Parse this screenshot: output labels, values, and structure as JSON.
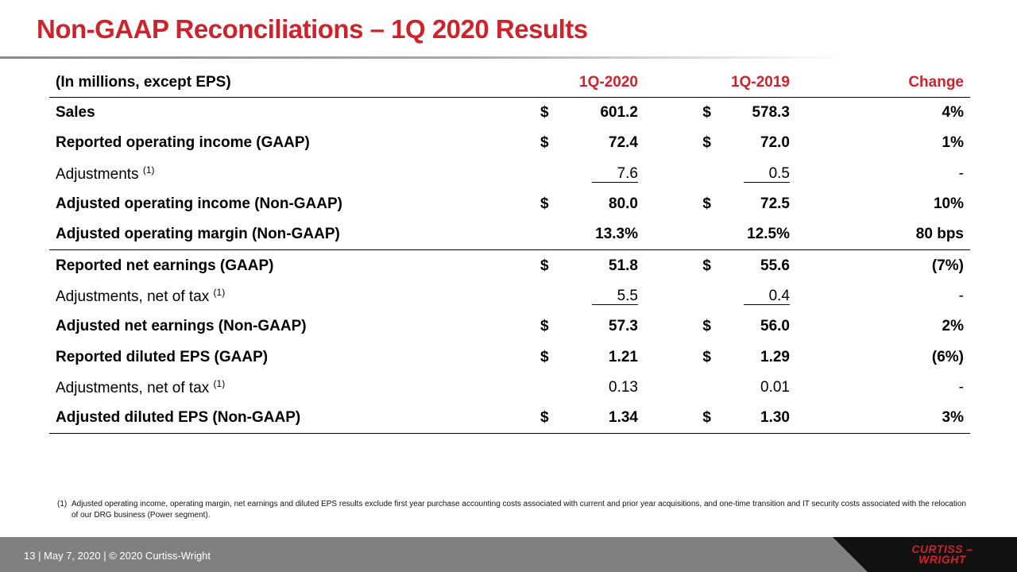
{
  "title": "Non-GAAP Reconciliations – 1Q 2020 Results",
  "table": {
    "header": {
      "label": "(In millions,  except EPS)",
      "col1": "1Q-2020",
      "col2": "1Q-2019",
      "col3": "Change"
    },
    "rows": [
      {
        "label": "Sales",
        "cur1": "$",
        "v1": "601.2",
        "cur2": "$",
        "v2": "578.3",
        "chg": "4%"
      },
      {
        "label": "Reported operating income (GAAP)",
        "cur1": "$",
        "v1": "72.4",
        "cur2": "$",
        "v2": "72.0",
        "chg": "1%"
      },
      {
        "label": "Adjustments",
        "sup": "(1)",
        "v1": "7.6",
        "v2": "0.5",
        "chg": "-"
      },
      {
        "label": "Adjusted operating income (Non-GAAP)",
        "cur1": "$",
        "v1": "80.0",
        "cur2": "$",
        "v2": "72.5",
        "chg": "10%"
      },
      {
        "label": "Adjusted operating margin (Non-GAAP)",
        "v1": "13.3%",
        "v2": "12.5%",
        "chg": "80 bps"
      },
      {
        "label": "Reported net earnings (GAAP)",
        "cur1": "$",
        "v1": "51.8",
        "cur2": "$",
        "v2": "55.6",
        "chg": "(7%)"
      },
      {
        "label": "Adjustments, net of tax",
        "sup": "(1)",
        "v1": "5.5",
        "v2": "0.4",
        "chg": "-"
      },
      {
        "label": "Adjusted net earnings (Non-GAAP)",
        "cur1": "$",
        "v1": "57.3",
        "cur2": "$",
        "v2": "56.0",
        "chg": "2%"
      },
      {
        "label": "Reported diluted EPS (GAAP)",
        "cur1": "$",
        "v1": "1.21",
        "cur2": "$",
        "v2": "1.29",
        "chg": "(6%)"
      },
      {
        "label": "Adjustments, net of tax",
        "sup": "(1)",
        "v1": "0.13",
        "v2": "0.01",
        "chg": "-"
      },
      {
        "label": "Adjusted diluted EPS (Non-GAAP)",
        "cur1": "$",
        "v1": "1.34",
        "cur2": "$",
        "v2": "1.30",
        "chg": "3%"
      }
    ]
  },
  "footnote": {
    "marker": "(1)",
    "text": "Adjusted operating income, operating margin, net earnings and diluted EPS results exclude first year purchase accounting costs associated with current and prior year acquisitions, and one-time transition and IT security costs associated with the relocation of our DRG business  (Power segment)."
  },
  "footer": {
    "text": "13  | May 7, 2020 | © 2020 Curtiss-Wright"
  },
  "logo": {
    "line1": "CURTISS –",
    "line2": "WRIGHT"
  },
  "colors": {
    "accent": "#d0222b",
    "footer_bg": "#808080",
    "logo_band": "#111111"
  }
}
